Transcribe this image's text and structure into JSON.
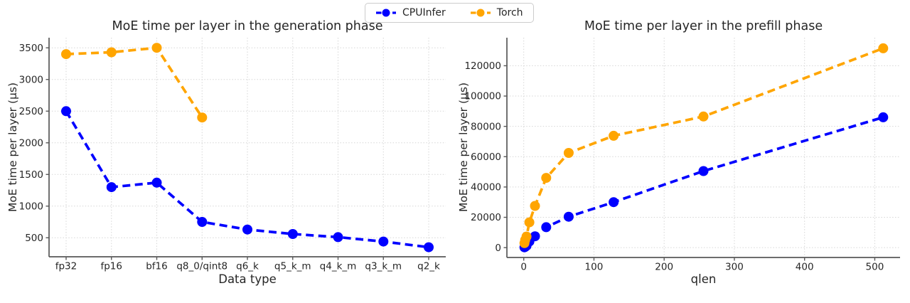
{
  "figure": {
    "background": "#ffffff"
  },
  "legend": {
    "items": [
      {
        "label": "CPUInfer",
        "color": "#0000ff"
      },
      {
        "label": "Torch",
        "color": "#ffa500"
      }
    ]
  },
  "chart_data": [
    {
      "type": "line",
      "title": "MoE time per layer in the generation phase",
      "xlabel": "Data type",
      "ylabel": "MoE time per layer (μs)",
      "x_type": "categorical",
      "categories": [
        "fp32",
        "fp16",
        "bf16",
        "q8_0/qint8",
        "q6_k",
        "q5_k_m",
        "q4_k_m",
        "q3_k_m",
        "q2_k"
      ],
      "yticks": [
        500,
        1000,
        1500,
        2000,
        2500,
        3000,
        3500
      ],
      "ylim": [
        200,
        3660
      ],
      "grid": true,
      "line_style": "dashed",
      "marker": "circle",
      "legend_position": "figure-top-center",
      "series": [
        {
          "name": "CPUInfer",
          "color": "#0000ff",
          "values": [
            2500,
            1300,
            1370,
            750,
            630,
            560,
            510,
            440,
            350
          ]
        },
        {
          "name": "Torch",
          "color": "#ffa500",
          "values": [
            3400,
            3430,
            3500,
            2400,
            null,
            null,
            null,
            null,
            null
          ]
        }
      ]
    },
    {
      "type": "line",
      "title": "MoE time per layer in the prefill phase",
      "xlabel": "qlen",
      "ylabel": "MoE time per layer (μs)",
      "x_type": "linear",
      "x": [
        1,
        2,
        4,
        8,
        16,
        32,
        64,
        128,
        256,
        512
      ],
      "xticks": [
        0,
        100,
        200,
        300,
        400,
        500
      ],
      "xlim": [
        -24,
        536
      ],
      "yticks": [
        0,
        20000,
        40000,
        60000,
        80000,
        100000,
        120000
      ],
      "ylim": [
        -6500,
        138500
      ],
      "grid": true,
      "line_style": "dashed",
      "marker": "circle",
      "legend_position": "figure-top-center",
      "series": [
        {
          "name": "CPUInfer",
          "color": "#0000ff",
          "values": [
            200,
            500,
            1200,
            4000,
            7500,
            13500,
            20400,
            30000,
            50500,
            86000
          ]
        },
        {
          "name": "Torch",
          "color": "#ffa500",
          "values": [
            3000,
            5000,
            7300,
            16700,
            27500,
            46000,
            62500,
            73800,
            86500,
            131500
          ]
        }
      ]
    }
  ]
}
